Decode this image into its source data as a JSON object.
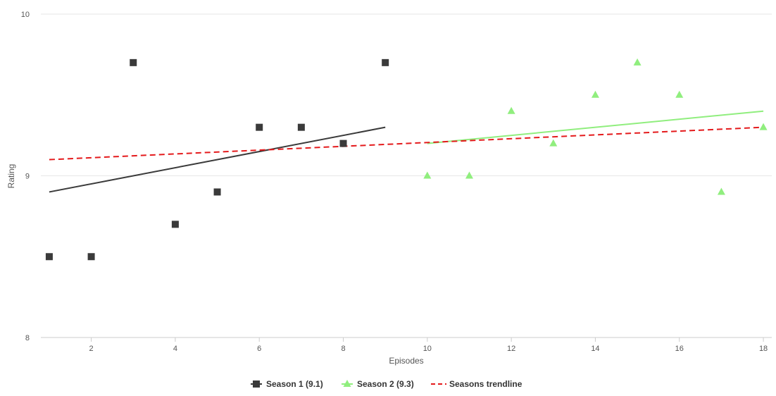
{
  "chart_data": {
    "type": "scatter",
    "xlabel": "Episodes",
    "ylabel": "Rating",
    "xlim": [
      0.8,
      18.2
    ],
    "ylim": [
      8,
      10
    ],
    "x_ticks": [
      2,
      4,
      6,
      8,
      10,
      12,
      14,
      16,
      18
    ],
    "y_ticks": [
      8,
      9,
      10
    ],
    "series": [
      {
        "name": "Season 1 (9.1)",
        "marker": "square",
        "color": "#3a3a3a",
        "points": [
          [
            1,
            8.5
          ],
          [
            2,
            8.5
          ],
          [
            3,
            9.7
          ],
          [
            4,
            8.7
          ],
          [
            5,
            8.9
          ],
          [
            6,
            9.3
          ],
          [
            7,
            9.3
          ],
          [
            8,
            9.2
          ],
          [
            9,
            9.7
          ]
        ],
        "trendline": [
          [
            1,
            8.9
          ],
          [
            9,
            9.3
          ]
        ]
      },
      {
        "name": "Season 2 (9.3)",
        "marker": "triangle",
        "color": "#90ee7e",
        "points": [
          [
            10,
            9.0
          ],
          [
            11,
            9.0
          ],
          [
            12,
            9.4
          ],
          [
            13,
            9.2
          ],
          [
            14,
            9.5
          ],
          [
            15,
            9.7
          ],
          [
            16,
            9.5
          ],
          [
            17,
            8.9
          ],
          [
            18,
            9.3
          ]
        ],
        "trendline": [
          [
            10,
            9.2
          ],
          [
            18,
            9.4
          ]
        ]
      }
    ],
    "overall_trendline": {
      "name": "Seasons trendline",
      "color": "#e41a1c",
      "dashed": true,
      "points": [
        [
          1,
          9.1
        ],
        [
          18,
          9.3
        ]
      ]
    },
    "grid": true,
    "legend_position": "bottom"
  }
}
